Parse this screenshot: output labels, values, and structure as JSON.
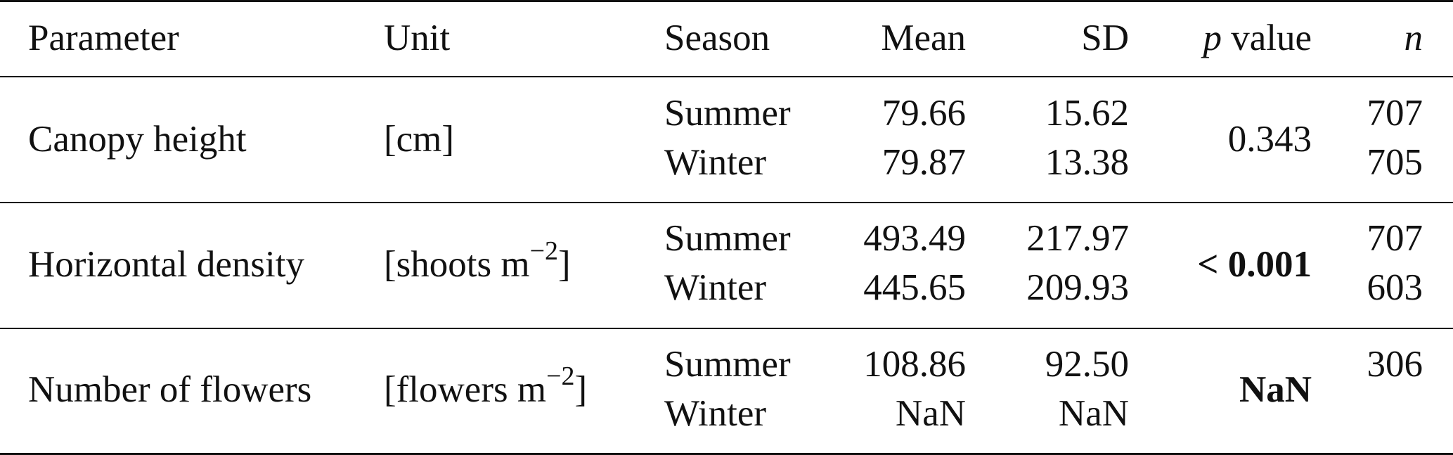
{
  "table": {
    "headers": {
      "parameter": "Parameter",
      "unit": "Unit",
      "season": "Season",
      "mean": "Mean",
      "sd": "SD",
      "p_symbol": "p",
      "p_word": "value",
      "n": "n"
    },
    "rows": [
      {
        "parameter": "Canopy height",
        "unit_base": "[cm]",
        "unit_sup": "",
        "unit_close": "",
        "season_1": "Summer",
        "season_2": "Winter",
        "mean_1": "79.66",
        "mean_2": "79.87",
        "sd_1": "15.62",
        "sd_2": "13.38",
        "p_value": "0.343",
        "n_1": "707",
        "n_2": "705"
      },
      {
        "parameter": "Horizontal density",
        "unit_base": "[shoots m",
        "unit_sup": "−2",
        "unit_close": "]",
        "season_1": "Summer",
        "season_2": "Winter",
        "mean_1": "493.49",
        "mean_2": "445.65",
        "sd_1": "217.97",
        "sd_2": "209.93",
        "p_value": "< 0.001",
        "n_1": "707",
        "n_2": "603"
      },
      {
        "parameter": "Number of flowers",
        "unit_base": "[flowers m",
        "unit_sup": "−2",
        "unit_close": "]",
        "season_1": "Summer",
        "season_2": "Winter",
        "mean_1": "108.86",
        "mean_2": "NaN",
        "sd_1": "92.50",
        "sd_2": "NaN",
        "p_value": "NaN",
        "n_1": "306",
        "n_2": ""
      }
    ]
  }
}
